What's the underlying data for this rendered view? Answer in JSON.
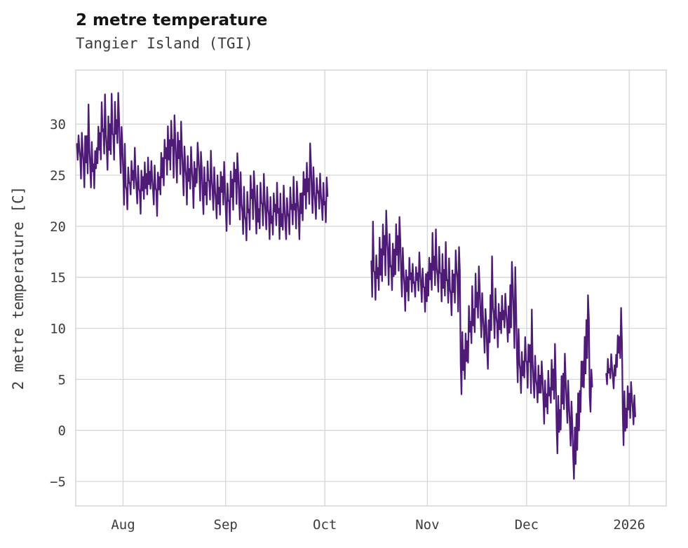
{
  "chart_data": {
    "type": "line",
    "title": "2 metre temperature",
    "subtitle": "Tangier Island (TGI)",
    "xlabel": "",
    "ylabel": "2 metre temperature [C]",
    "series_name": "2 metre temperature",
    "line_color": "#4e1b77",
    "grid_color": "#d6d6d6",
    "text_color": "#3c3c3c",
    "background_color": "#ffffff",
    "grid": true,
    "legend": false,
    "ylim": [
      -7.4,
      35.3
    ],
    "yticks": [
      -5,
      0,
      5,
      10,
      15,
      20,
      25,
      30
    ],
    "xlim_days": [
      -0.3,
      178.2
    ],
    "x_unit": "days since Jul 18",
    "xticks": [
      {
        "day": 14,
        "label": "Aug"
      },
      {
        "day": 45,
        "label": "Sep"
      },
      {
        "day": 75,
        "label": "Oct"
      },
      {
        "day": 106,
        "label": "Nov"
      },
      {
        "day": 136,
        "label": "Dec"
      },
      {
        "day": 167,
        "label": "2026"
      }
    ],
    "segments": [
      {
        "start_day": 0,
        "daily_min_max": [
          [
            26.5,
            29
          ],
          [
            24.5,
            29.5
          ],
          [
            23.5,
            29
          ],
          [
            25,
            32
          ],
          [
            23.5,
            28.5
          ],
          [
            23.5,
            27.5
          ],
          [
            26,
            30
          ],
          [
            26.5,
            32.5
          ],
          [
            27,
            33
          ],
          [
            25.5,
            31
          ],
          [
            27,
            33
          ],
          [
            26.5,
            32.5
          ],
          [
            28,
            33.2
          ],
          [
            25,
            30
          ],
          [
            22,
            28.5
          ],
          [
            21.5,
            26
          ],
          [
            23,
            26.5
          ],
          [
            23.5,
            28
          ],
          [
            22,
            26
          ],
          [
            21,
            25.5
          ],
          [
            22.5,
            26.5
          ],
          [
            23,
            27
          ],
          [
            23.5,
            26.5
          ],
          [
            22,
            26
          ],
          [
            21,
            25.5
          ],
          [
            23,
            27.5
          ],
          [
            24,
            28.5
          ],
          [
            25,
            30
          ],
          [
            25.5,
            30.5
          ],
          [
            24.5,
            31
          ],
          [
            24,
            29.5
          ],
          [
            25,
            30.5
          ],
          [
            23,
            28
          ],
          [
            22,
            27
          ],
          [
            23.5,
            28
          ],
          [
            21.5,
            26.5
          ],
          [
            24,
            28.5
          ],
          [
            22.5,
            27.5
          ],
          [
            21,
            26
          ],
          [
            22,
            26.5
          ],
          [
            22.5,
            27.5
          ],
          [
            21.5,
            26
          ],
          [
            20.5,
            25
          ],
          [
            21,
            25.5
          ],
          [
            22,
            26.5
          ],
          [
            19.5,
            24.5
          ],
          [
            20,
            25.5
          ],
          [
            21.5,
            26.5
          ],
          [
            22,
            27.5
          ],
          [
            20.5,
            25.5
          ],
          [
            19,
            24
          ],
          [
            18.5,
            23.5
          ],
          [
            19.5,
            25
          ],
          [
            20.5,
            25.5
          ],
          [
            19,
            24
          ],
          [
            19.5,
            24.5
          ],
          [
            20,
            25.2
          ],
          [
            19.5,
            24
          ],
          [
            18.5,
            23
          ],
          [
            19,
            23.5
          ],
          [
            20,
            24.5
          ],
          [
            18.5,
            23.5
          ],
          [
            19.5,
            24.2
          ],
          [
            18.5,
            23
          ],
          [
            19,
            24
          ],
          [
            20,
            25
          ],
          [
            19.5,
            24.5
          ],
          [
            18.5,
            23.5
          ],
          [
            20.5,
            25.5
          ],
          [
            21.5,
            26.5
          ],
          [
            22,
            28.4
          ],
          [
            21,
            26
          ],
          [
            20.5,
            25
          ],
          [
            21.5,
            25.4
          ],
          [
            20.5,
            24.5
          ],
          [
            20.2,
            24.8
          ]
        ]
      },
      {
        "start_day": 89,
        "daily_min_max": [
          [
            13,
            21
          ],
          [
            12.5,
            17.5
          ],
          [
            13.5,
            19
          ],
          [
            14.5,
            20.5
          ],
          [
            15,
            22
          ],
          [
            14,
            19.5
          ],
          [
            13.5,
            18.5
          ],
          [
            15,
            20.5
          ],
          [
            15.5,
            21
          ],
          [
            13,
            18
          ],
          [
            11.5,
            16
          ],
          [
            12.5,
            17
          ],
          [
            13.5,
            16.5
          ],
          [
            13,
            16
          ],
          [
            13.5,
            17.5
          ],
          [
            12.5,
            16
          ],
          [
            11.5,
            15.5
          ],
          [
            13,
            17
          ],
          [
            13.5,
            19.5
          ],
          [
            14,
            19.8
          ],
          [
            13.5,
            18
          ],
          [
            12.5,
            17.5
          ],
          [
            13,
            18.5
          ],
          [
            12.5,
            17
          ],
          [
            11,
            16
          ],
          [
            12.5,
            17.8
          ],
          [
            11.5,
            18.2
          ],
          [
            3.5,
            10
          ],
          [
            5,
            9.5
          ],
          [
            6.5,
            12.5
          ],
          [
            8.5,
            14.5
          ],
          [
            9.5,
            15.5
          ],
          [
            11,
            16.2
          ],
          [
            9,
            13.5
          ],
          [
            7.5,
            12
          ],
          [
            6,
            11
          ],
          [
            9.5,
            17.3
          ],
          [
            9,
            14
          ],
          [
            8,
            12.5
          ],
          [
            9.5,
            13.2
          ],
          [
            10,
            13.5
          ],
          [
            8.5,
            12.3
          ],
          [
            10,
            16.8
          ],
          [
            8,
            16.5
          ],
          [
            4.5,
            10
          ],
          [
            3.5,
            8
          ],
          [
            5,
            9.4
          ],
          [
            4,
            8.5
          ],
          [
            3.5,
            12.2
          ],
          [
            3,
            7.5
          ],
          [
            2.5,
            6.5
          ],
          [
            3.5,
            7
          ],
          [
            0.5,
            5
          ],
          [
            1.5,
            6
          ],
          [
            2.5,
            7
          ],
          [
            3,
            8.8
          ],
          [
            -2.5,
            3.5
          ],
          [
            0,
            5.5
          ],
          [
            2,
            7.8
          ],
          [
            0.5,
            5
          ],
          [
            -1.5,
            3
          ],
          [
            -5,
            0.5
          ],
          [
            -2,
            4
          ],
          [
            1.5,
            7
          ],
          [
            4,
            9.5
          ],
          [
            7,
            13.5
          ],
          [
            1.7,
            6
          ]
        ]
      },
      {
        "start_day": 160,
        "daily_min_max": [
          [
            4.5,
            7
          ],
          [
            5,
            7.5
          ],
          [
            4,
            6.5
          ],
          [
            6,
            9.5
          ],
          [
            7,
            12.2
          ],
          [
            -1.7,
            4
          ],
          [
            0,
            4.5
          ],
          [
            1,
            5
          ],
          [
            0.5,
            3.5
          ]
        ]
      }
    ]
  }
}
